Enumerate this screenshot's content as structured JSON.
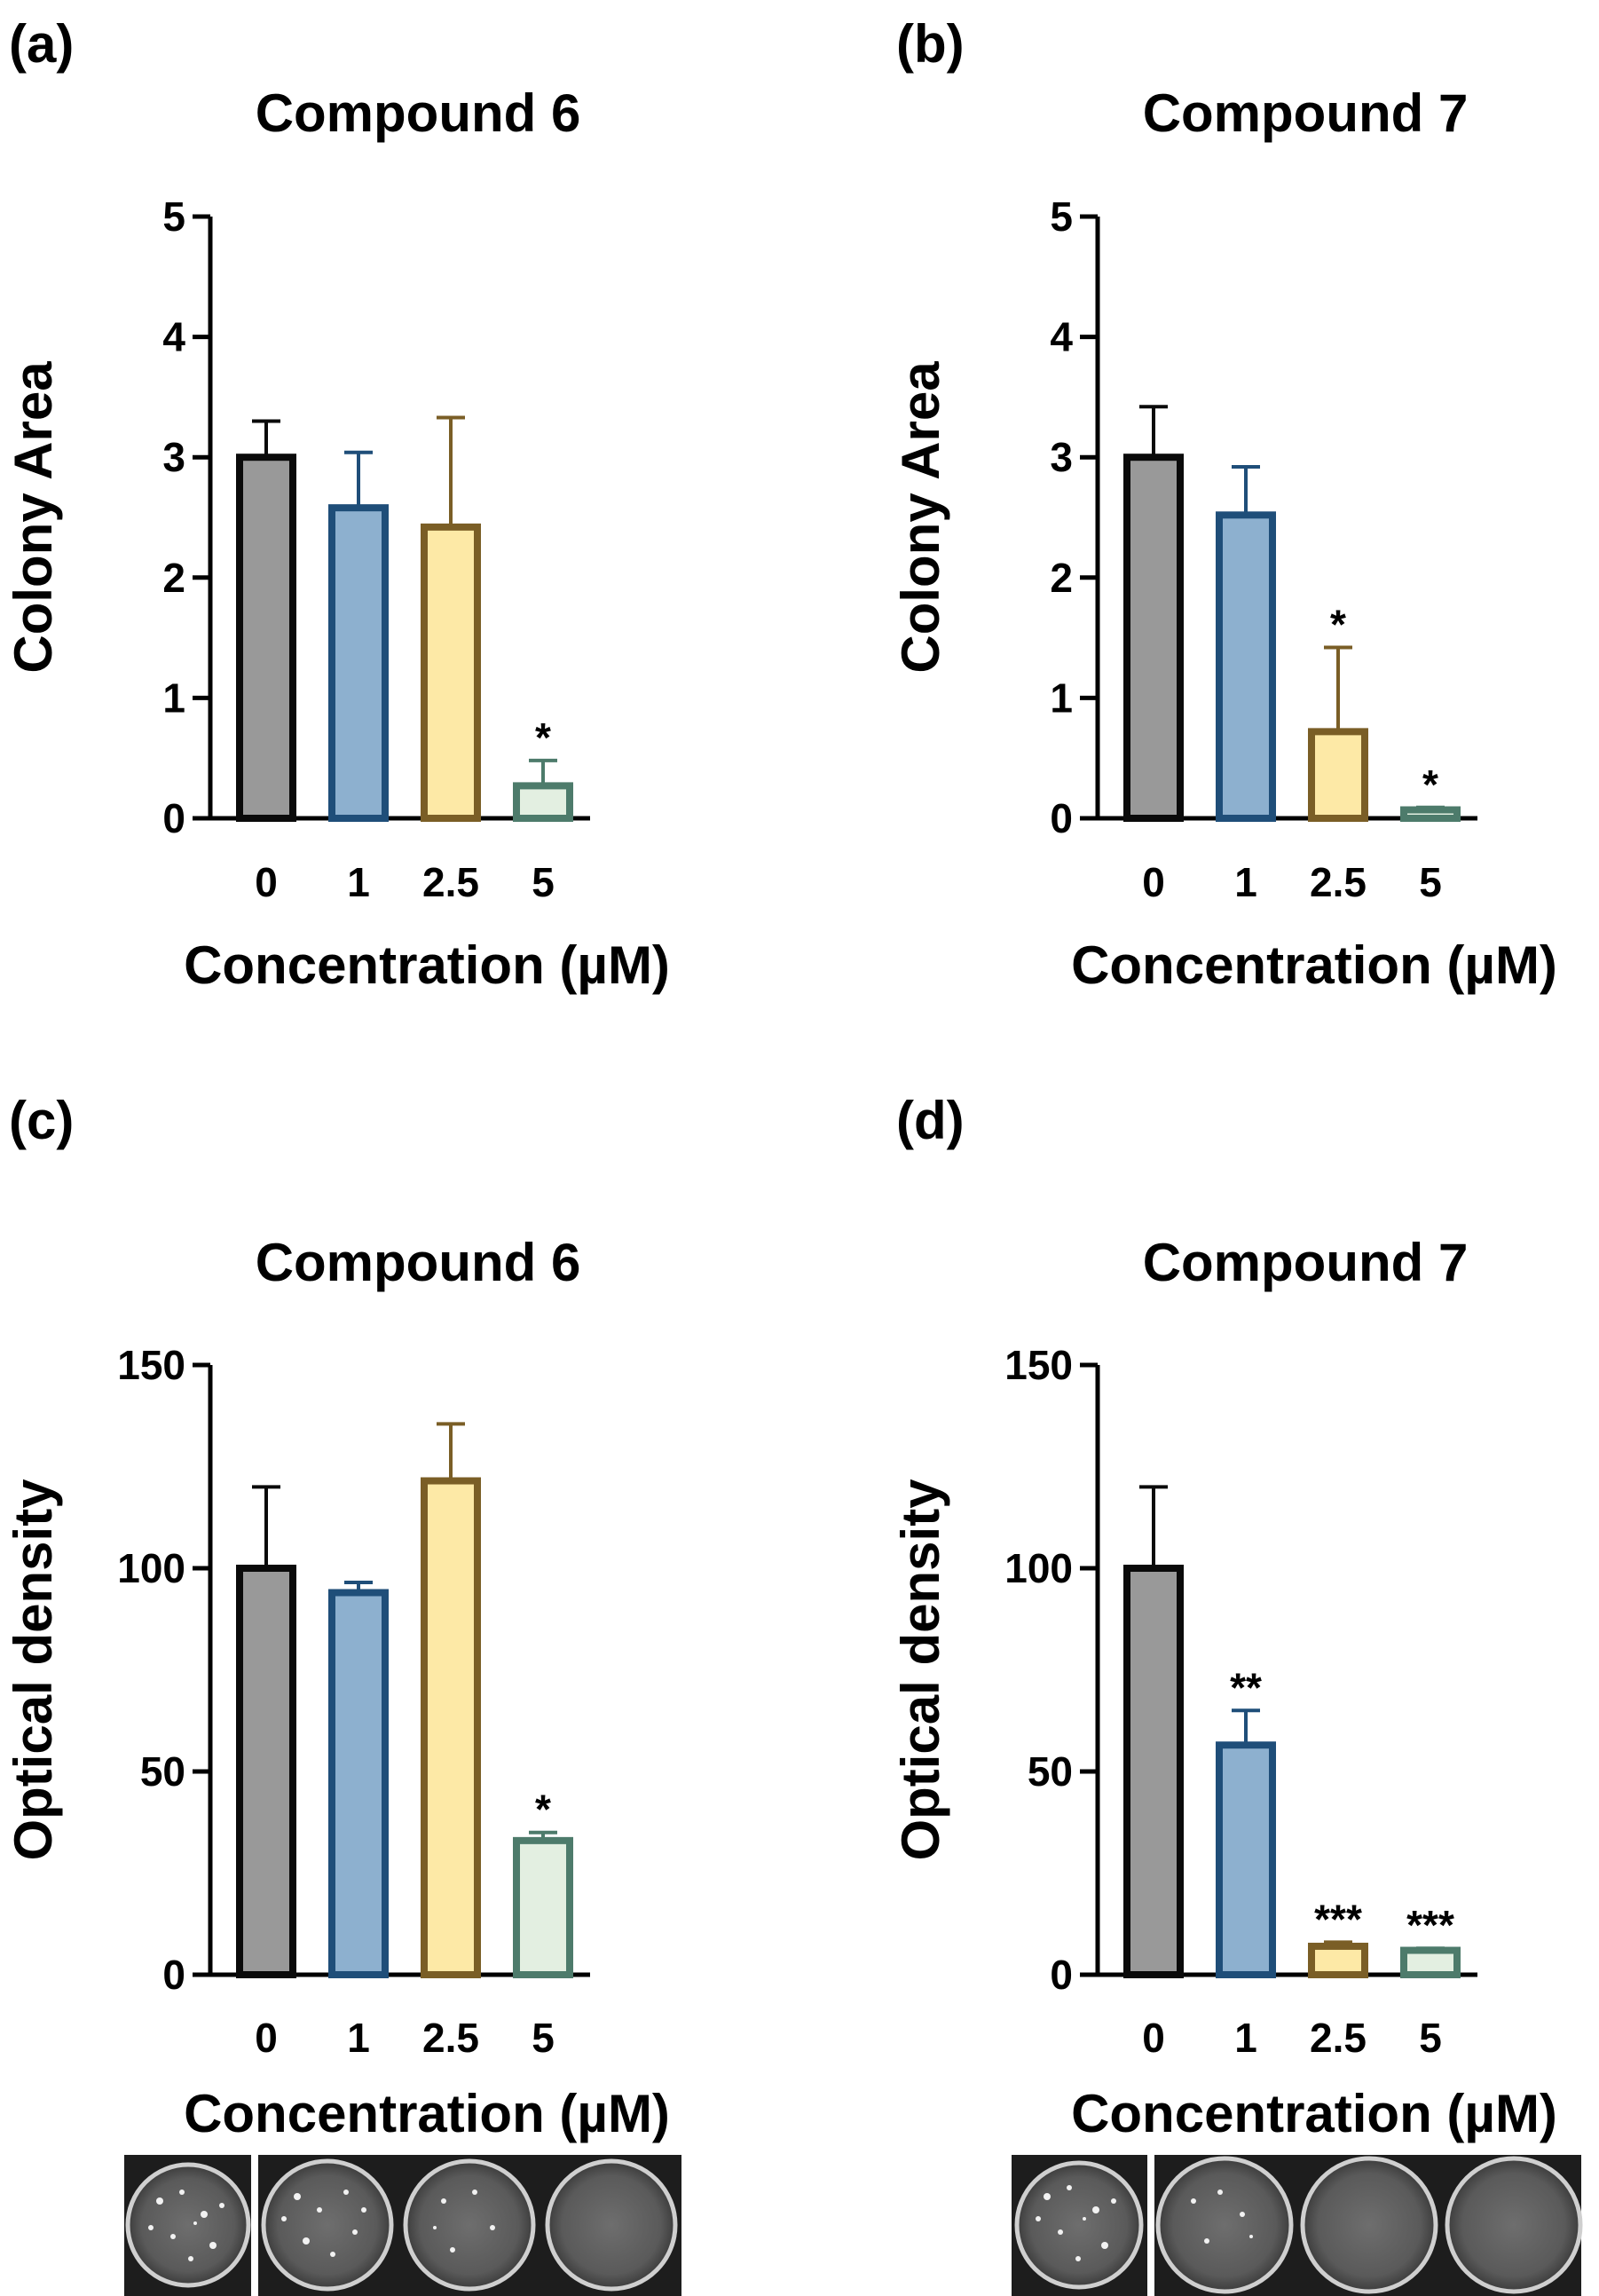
{
  "figure": {
    "panel_labels": [
      "(a)",
      "(b)",
      "(c)",
      "(d)"
    ]
  },
  "chart_data": [
    {
      "panel": "(a)",
      "type": "bar",
      "title": "Compound 6",
      "xlabel": "Concentration (µM)",
      "ylabel": "Colony Area",
      "categories": [
        "0",
        "1",
        "2.5",
        "5"
      ],
      "values": [
        3.0,
        2.58,
        2.42,
        0.27
      ],
      "errors": [
        0.3,
        0.46,
        0.91,
        0.21
      ],
      "significance": [
        "",
        "",
        "",
        "*"
      ],
      "ylim": [
        0,
        5
      ],
      "yticks": [
        0,
        1,
        2,
        3,
        4,
        5
      ],
      "colors": [
        "#999999",
        "#8db0cf",
        "#fde9a6",
        "#e3efe1"
      ],
      "edge_colors": [
        "#0a0a0a",
        "#1f4e79",
        "#7a5e26",
        "#4d7b6b"
      ]
    },
    {
      "panel": "(b)",
      "type": "bar",
      "title": "Compound 7",
      "xlabel": "Concentration (µM)",
      "ylabel": "Colony Area",
      "categories": [
        "0",
        "1",
        "2.5",
        "5"
      ],
      "values": [
        3.0,
        2.52,
        0.72,
        0.07
      ],
      "errors": [
        0.42,
        0.4,
        0.7,
        0.02
      ],
      "significance": [
        "",
        "",
        "*",
        "*"
      ],
      "ylim": [
        0,
        5
      ],
      "yticks": [
        0,
        1,
        2,
        3,
        4,
        5
      ],
      "colors": [
        "#999999",
        "#8db0cf",
        "#fde9a6",
        "#e3efe1"
      ],
      "edge_colors": [
        "#0a0a0a",
        "#1f4e79",
        "#7a5e26",
        "#4d7b6b"
      ]
    },
    {
      "panel": "(c)",
      "type": "bar",
      "title": "Compound 6",
      "xlabel": "Concentration (µM)",
      "ylabel": "Optical density",
      "categories": [
        "0",
        "1",
        "2.5",
        "5"
      ],
      "values": [
        100,
        94,
        121.5,
        33
      ],
      "errors": [
        20,
        2.5,
        14,
        2
      ],
      "significance": [
        "",
        "",
        "",
        "*"
      ],
      "ylim": [
        0,
        150
      ],
      "yticks": [
        0,
        50,
        100,
        150
      ],
      "colors": [
        "#999999",
        "#8db0cf",
        "#fde9a6",
        "#e3efe1"
      ],
      "edge_colors": [
        "#0a0a0a",
        "#1f4e79",
        "#7a5e26",
        "#4d7b6b"
      ]
    },
    {
      "panel": "(d)",
      "type": "bar",
      "title": "Compound 7",
      "xlabel": "Concentration (µM)",
      "ylabel": "Optical density",
      "categories": [
        "0",
        "1",
        "2.5",
        "5"
      ],
      "values": [
        100,
        56.5,
        7,
        6
      ],
      "errors": [
        20,
        8.5,
        1,
        0.5
      ],
      "significance": [
        "",
        "**",
        "***",
        "***"
      ],
      "ylim": [
        0,
        150
      ],
      "yticks": [
        0,
        50,
        100,
        150
      ],
      "colors": [
        "#999999",
        "#8db0cf",
        "#fde9a6",
        "#e3efe1"
      ],
      "edge_colors": [
        "#0a0a0a",
        "#1f4e79",
        "#7a5e26",
        "#4d7b6b"
      ]
    }
  ]
}
